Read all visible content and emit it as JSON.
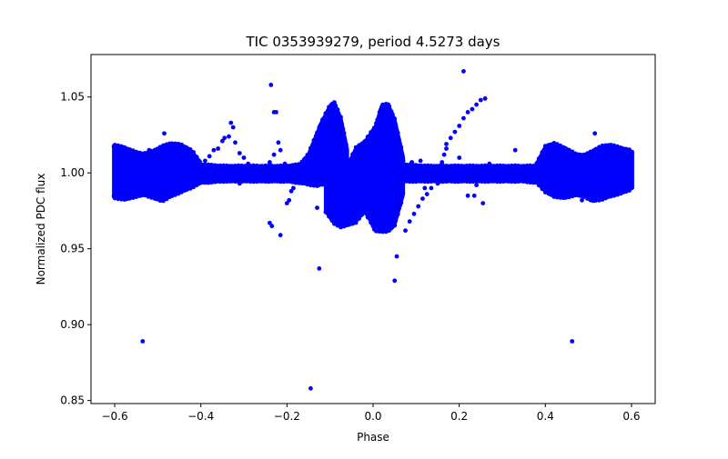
{
  "chart_data": {
    "type": "scatter",
    "title": "TIC 0353939279, period 4.5273 days",
    "xlabel": "Phase",
    "ylabel": "Normalized PDC flux",
    "xlim": [
      -0.655,
      0.655
    ],
    "ylim": [
      0.848,
      1.078
    ],
    "x_ticks": [
      -0.6,
      -0.4,
      -0.2,
      0.0,
      0.2,
      0.4,
      0.6
    ],
    "x_tick_labels": [
      "−0.6",
      "−0.4",
      "−0.2",
      "0.0",
      "0.2",
      "0.4",
      "0.6"
    ],
    "y_ticks": [
      0.85,
      0.9,
      0.95,
      1.0,
      1.05
    ],
    "y_tick_labels": [
      "0.85",
      "0.90",
      "0.95",
      "1.00",
      "1.05"
    ],
    "grid": false,
    "marker_color": "#0000ff",
    "dense_bands": [
      {
        "name": "left-beat",
        "x": [
          -0.602,
          -0.575,
          -0.55,
          -0.53,
          -0.51,
          -0.49,
          -0.47,
          -0.445,
          -0.42,
          -0.4
        ],
        "ymax": [
          1.018,
          1.016,
          1.013,
          1.012,
          1.014,
          1.017,
          1.019,
          1.018,
          1.014,
          1.006
        ],
        "ymin": [
          0.984,
          0.983,
          0.985,
          0.986,
          0.984,
          0.982,
          0.985,
          0.988,
          0.991,
          0.994
        ]
      },
      {
        "name": "left-quiet",
        "x": [
          -0.4,
          -0.35,
          -0.3,
          -0.25,
          -0.2,
          -0.17
        ],
        "ymax": [
          1.005,
          1.004,
          1.004,
          1.004,
          1.004,
          1.005
        ],
        "ymin": [
          0.994,
          0.995,
          0.995,
          0.995,
          0.995,
          0.994
        ]
      },
      {
        "name": "egress-hump",
        "x": [
          -0.17,
          -0.15,
          -0.13,
          -0.12,
          -0.1,
          -0.09,
          -0.075,
          -0.06
        ],
        "ymax": [
          1.005,
          1.012,
          1.026,
          1.033,
          1.044,
          1.046,
          1.036,
          1.015
        ],
        "ymin": [
          0.994,
          0.993,
          0.992,
          0.993,
          0.993,
          0.995,
          0.993,
          0.993
        ]
      },
      {
        "name": "central-dip",
        "x": [
          -0.11,
          -0.09,
          -0.075,
          -0.06,
          -0.04,
          -0.02,
          -0.005,
          0.005,
          0.02,
          0.035,
          0.05,
          0.07
        ],
        "ymax": [
          1.0,
          1.006,
          1.01,
          1.004,
          1.016,
          1.02,
          1.026,
          1.03,
          1.044,
          1.045,
          1.035,
          1.01
        ],
        "ymin": [
          0.975,
          0.967,
          0.965,
          0.966,
          0.968,
          0.975,
          0.968,
          0.962,
          0.962,
          0.962,
          0.966,
          0.986
        ]
      },
      {
        "name": "right-quiet",
        "x": [
          0.07,
          0.12,
          0.2,
          0.28,
          0.35,
          0.38
        ],
        "ymax": [
          1.005,
          1.004,
          1.004,
          1.004,
          1.004,
          1.004
        ],
        "ymin": [
          0.995,
          0.995,
          0.995,
          0.995,
          0.995,
          0.994
        ]
      },
      {
        "name": "right-beat",
        "x": [
          0.38,
          0.4,
          0.42,
          0.445,
          0.47,
          0.49,
          0.51,
          0.53,
          0.55,
          0.575,
          0.602
        ],
        "ymax": [
          1.006,
          1.017,
          1.019,
          1.016,
          1.012,
          1.011,
          1.014,
          1.017,
          1.018,
          1.016,
          1.014
        ],
        "ymin": [
          0.994,
          0.988,
          0.985,
          0.984,
          0.986,
          0.985,
          0.982,
          0.983,
          0.985,
          0.987,
          0.99
        ]
      }
    ],
    "trails": [
      {
        "name": "left-arc",
        "points": [
          [
            -0.36,
            1.016
          ],
          [
            -0.35,
            1.021
          ],
          [
            -0.345,
            1.023
          ],
          [
            -0.335,
            1.024
          ],
          [
            -0.33,
            1.033
          ],
          [
            -0.325,
            1.03
          ],
          [
            -0.32,
            1.02
          ],
          [
            -0.31,
            1.013
          ],
          [
            -0.3,
            1.01
          ],
          [
            -0.29,
            1.006
          ],
          [
            -0.38,
            1.011
          ],
          [
            -0.39,
            1.008
          ]
        ]
      },
      {
        "name": "right-arc",
        "points": [
          [
            0.17,
            1.019
          ],
          [
            0.18,
            1.023
          ],
          [
            0.19,
            1.027
          ],
          [
            0.2,
            1.031
          ],
          [
            0.21,
            1.036
          ],
          [
            0.22,
            1.04
          ],
          [
            0.23,
            1.042
          ],
          [
            0.24,
            1.045
          ],
          [
            0.25,
            1.048
          ],
          [
            0.26,
            1.049
          ]
        ]
      },
      {
        "name": "descending-trail",
        "points": [
          [
            0.075,
            0.962
          ],
          [
            0.085,
            0.968
          ],
          [
            0.095,
            0.973
          ],
          [
            0.105,
            0.978
          ],
          [
            0.115,
            0.983
          ],
          [
            0.125,
            0.986
          ],
          [
            0.135,
            0.99
          ],
          [
            0.15,
            0.993
          ]
        ]
      }
    ],
    "scattered_points": [
      [
        -0.535,
        0.889
      ],
      [
        -0.145,
        0.858
      ],
      [
        -0.125,
        0.937
      ],
      [
        0.05,
        0.929
      ],
      [
        0.055,
        0.945
      ],
      [
        0.462,
        0.889
      ],
      [
        0.21,
        1.067
      ],
      [
        -0.237,
        1.058
      ],
      [
        -0.23,
        1.04
      ],
      [
        -0.225,
        1.04
      ],
      [
        -0.24,
        0.967
      ],
      [
        -0.235,
        0.965
      ],
      [
        -0.215,
        0.959
      ],
      [
        -0.2,
        0.98
      ],
      [
        -0.195,
        0.982
      ],
      [
        -0.19,
        0.988
      ],
      [
        -0.185,
        0.99
      ],
      [
        -0.175,
        0.994
      ],
      [
        -0.13,
        0.977
      ],
      [
        -0.44,
        0.997
      ],
      [
        -0.42,
        0.993
      ],
      [
        -0.4,
        1.002
      ],
      [
        -0.37,
        1.015
      ],
      [
        -0.315,
        0.995
      ],
      [
        -0.31,
        0.993
      ],
      [
        -0.28,
        1.001
      ],
      [
        -0.26,
        0.998
      ],
      [
        -0.24,
        1.007
      ],
      [
        -0.23,
        1.012
      ],
      [
        -0.22,
        1.02
      ],
      [
        -0.215,
        1.015
      ],
      [
        -0.205,
        1.006
      ],
      [
        -0.185,
        1.005
      ],
      [
        0.12,
        0.99
      ],
      [
        0.15,
        1.002
      ],
      [
        0.155,
        1.001
      ],
      [
        0.16,
        1.007
      ],
      [
        0.165,
        1.012
      ],
      [
        0.17,
        1.016
      ],
      [
        0.2,
        1.01
      ],
      [
        0.22,
        0.985
      ],
      [
        0.235,
        0.985
      ],
      [
        0.24,
        0.992
      ],
      [
        0.255,
        0.98
      ],
      [
        0.27,
        1.006
      ],
      [
        0.33,
        1.015
      ],
      [
        0.36,
        0.999
      ],
      [
        0.4,
        1.008
      ],
      [
        0.43,
        1.01
      ],
      [
        0.485,
        0.982
      ],
      [
        0.515,
        1.026
      ],
      [
        0.49,
        1.012
      ],
      [
        -0.485,
        1.026
      ],
      [
        -0.52,
        1.015
      ],
      [
        -0.53,
        1.013
      ],
      [
        -0.51,
        1.012
      ],
      [
        0.02,
        1.003
      ],
      [
        0.04,
        1.01
      ],
      [
        0.07,
        1.008
      ],
      [
        0.09,
        1.007
      ],
      [
        0.11,
        1.008
      ],
      [
        0.13,
        1.003
      ],
      [
        0.14,
        1.001
      ],
      [
        0.1,
        0.995
      ],
      [
        -0.18,
        0.995
      ]
    ]
  }
}
